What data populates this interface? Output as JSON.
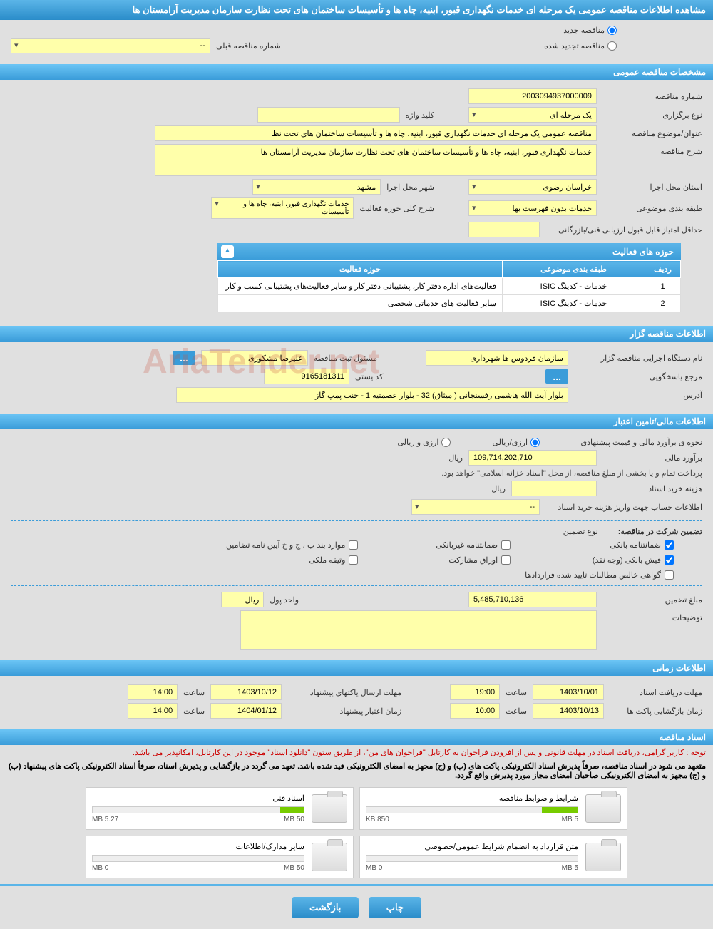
{
  "page_title": "مشاهده اطلاعات مناقصه عمومی یک مرحله ای خدمات نگهداری قبور، ابنیه، چاه ها و تأسیسات ساختمان های تحت نظارت سازمان مدیریت آرامستان ها",
  "tender_type": {
    "new_label": "مناقصه جدید",
    "renewed_label": "مناقصه تجدید شده",
    "prev_number_label": "شماره مناقصه قبلی",
    "prev_number_value": "--"
  },
  "sections": {
    "general": "مشخصات مناقصه عمومی",
    "organizer": "اطلاعات مناقصه گزار",
    "financial": "اطلاعات مالی/تامین اعتبار",
    "timing": "اطلاعات زمانی",
    "documents": "اسناد مناقصه"
  },
  "general": {
    "number_label": "شماره مناقصه",
    "number_value": "2003094937000009",
    "type_label": "نوع برگزاری",
    "type_value": "یک مرحله ای",
    "keyword_label": "کلید واژه",
    "keyword_value": "",
    "subject_label": "عنوان/موضوع مناقصه",
    "subject_value": "مناقصه عمومی یک مرحله ای خدمات نگهداری قبور، ابنیه، چاه ها و تأسیسات ساختمان های تحت نظ",
    "desc_label": "شرح مناقصه",
    "desc_value": "خدمات نگهداری قبور، ابنیه، چاه ها و تأسیسات ساختمان های تحت نظارت سازمان مدیریت آرامستان ها",
    "province_label": "استان محل اجرا",
    "province_value": "خراسان رضوی",
    "city_label": "شهر محل اجرا",
    "city_value": "مشهد",
    "category_label": "طبقه بندی موضوعی",
    "category_value": "خدمات بدون فهرست بها",
    "activity_desc_label": "شرح کلی حوزه فعالیت",
    "activity_desc_value": "خدمات نگهداری قبور، ابنیه، چاه ها و تأسیسات",
    "min_score_label": "حداقل امتیاز قابل قبول ارزیابی فنی/بازرگانی",
    "min_score_value": ""
  },
  "activity_table": {
    "title": "حوزه های فعالیت",
    "col_row": "ردیف",
    "col_category": "طبقه بندی موضوعی",
    "col_activity": "حوزه فعالیت",
    "rows": [
      {
        "n": "1",
        "cat": "خدمات - کدینگ ISIC",
        "act": "فعالیت‌های اداره دفتر کار، پشتیبانی دفتر کار و سایر فعالیت‌های پشتیبانی کسب و کار"
      },
      {
        "n": "2",
        "cat": "خدمات - کدینگ ISIC",
        "act": "سایر فعالیت های خدماتی شخصی"
      }
    ]
  },
  "organizer": {
    "exec_label": "نام دستگاه اجرایی مناقصه گزار",
    "exec_value": "سازمان فردوس ها شهرداری",
    "registrar_label": "مسئول ثبت مناقصه",
    "registrar_value": "علیرضا مشکوری",
    "contact_label": "مرجع پاسخگویی",
    "postal_label": "کد پستی",
    "postal_value": "9165181311",
    "address_label": "آدرس",
    "address_value": "بلوار آیت الله هاشمی رفسنجانی ( میثاق) 32 - بلوار عصمتیه 1 - جنب پمپ گاز"
  },
  "financial": {
    "estimate_label": "نحوه ی برآورد مالی و قیمت پیشنهادی",
    "currency_rial": "ارزی/ریالی",
    "currency_foreign": "ارزی و ریالی",
    "estimate_amount_label": "برآورد مالی",
    "estimate_amount_value": "109,714,202,710",
    "unit_rial": "ریال",
    "payment_note": "پرداخت تمام و یا بخشی از مبلغ مناقصه، از محل \"اسناد خزانه اسلامی\" خواهد بود.",
    "doc_cost_label": "هزینه خرید اسناد",
    "doc_cost_value": "",
    "account_label": "اطلاعات حساب جهت واریز هزینه خرید اسناد",
    "account_value": "--",
    "guarantee_label": "تضمین شرکت در مناقصه:",
    "guarantee_type_label": "نوع تضمین",
    "g_bank": "ضمانتنامه بانکی",
    "g_nonbank": "ضمانتنامه غیربانکی",
    "g_clauses": "موارد بند ب ، ج و خ آیین نامه تضامین",
    "g_cash": "فیش بانکی (وجه نقد)",
    "g_bonds": "اوراق مشارکت",
    "g_property": "وثیقه ملکی",
    "g_receivable": "گواهی خالص مطالبات تایید شده قراردادها",
    "guarantee_amount_label": "مبلغ تضمین",
    "guarantee_amount_value": "5,485,710,136",
    "unit_label": "واحد پول",
    "notes_label": "توضیحات"
  },
  "timing": {
    "receive_deadline_label": "مهلت دریافت اسناد",
    "receive_deadline_date": "1403/10/01",
    "receive_deadline_time": "19:00",
    "send_deadline_label": "مهلت ارسال پاکتهای پیشنهاد",
    "send_deadline_date": "1403/10/12",
    "send_deadline_time": "14:00",
    "open_label": "زمان بازگشایی پاکت ها",
    "open_date": "1403/10/13",
    "open_time": "10:00",
    "validity_label": "زمان اعتبار پیشنهاد",
    "validity_date": "1404/01/12",
    "validity_time": "14:00",
    "time_label": "ساعت"
  },
  "documents": {
    "notice1": "توجه : کاربر گرامی، دریافت اسناد در مهلت قانونی و پس از افزودن فراخوان به کارتابل \"فراخوان های من\"، از طریق ستون \"دانلود اسناد\" موجود در این کارتابل، امکانپذیر می باشد.",
    "notice2": "متعهد می شود در اسناد مناقصه، صرفاً پذیرش اسناد الکترونیکی پاکت های (ب) و (ج) مجهز به امضای الکترونیکی قید شده باشد. تعهد می گردد در بازگشایی و پذیرش اسناد، صرفاً اسناد الکترونیکی پاکت های پیشنهاد (ب) و (ج) مجهز به امضای الکترونیکی صاحبان امضای مجاز مورد پذیرش واقع گردد.",
    "files": [
      {
        "title": "شرایط و ضوابط مناقصه",
        "used": "850 KB",
        "total": "5 MB",
        "pct": 17
      },
      {
        "title": "اسناد فنی",
        "used": "5.27 MB",
        "total": "50 MB",
        "pct": 11
      },
      {
        "title": "متن قرارداد به انضمام شرایط عمومی/خصوصی",
        "used": "0 MB",
        "total": "5 MB",
        "pct": 0
      },
      {
        "title": "سایر مدارک/اطلاعات",
        "used": "0 MB",
        "total": "50 MB",
        "pct": 0
      }
    ]
  },
  "buttons": {
    "print": "چاپ",
    "back": "بازگشت"
  },
  "watermark": "AriaTender.net",
  "colors": {
    "header_bg": "#3a9cd9",
    "field_bg": "#ffffaa",
    "page_bg": "#e0e0e0"
  }
}
